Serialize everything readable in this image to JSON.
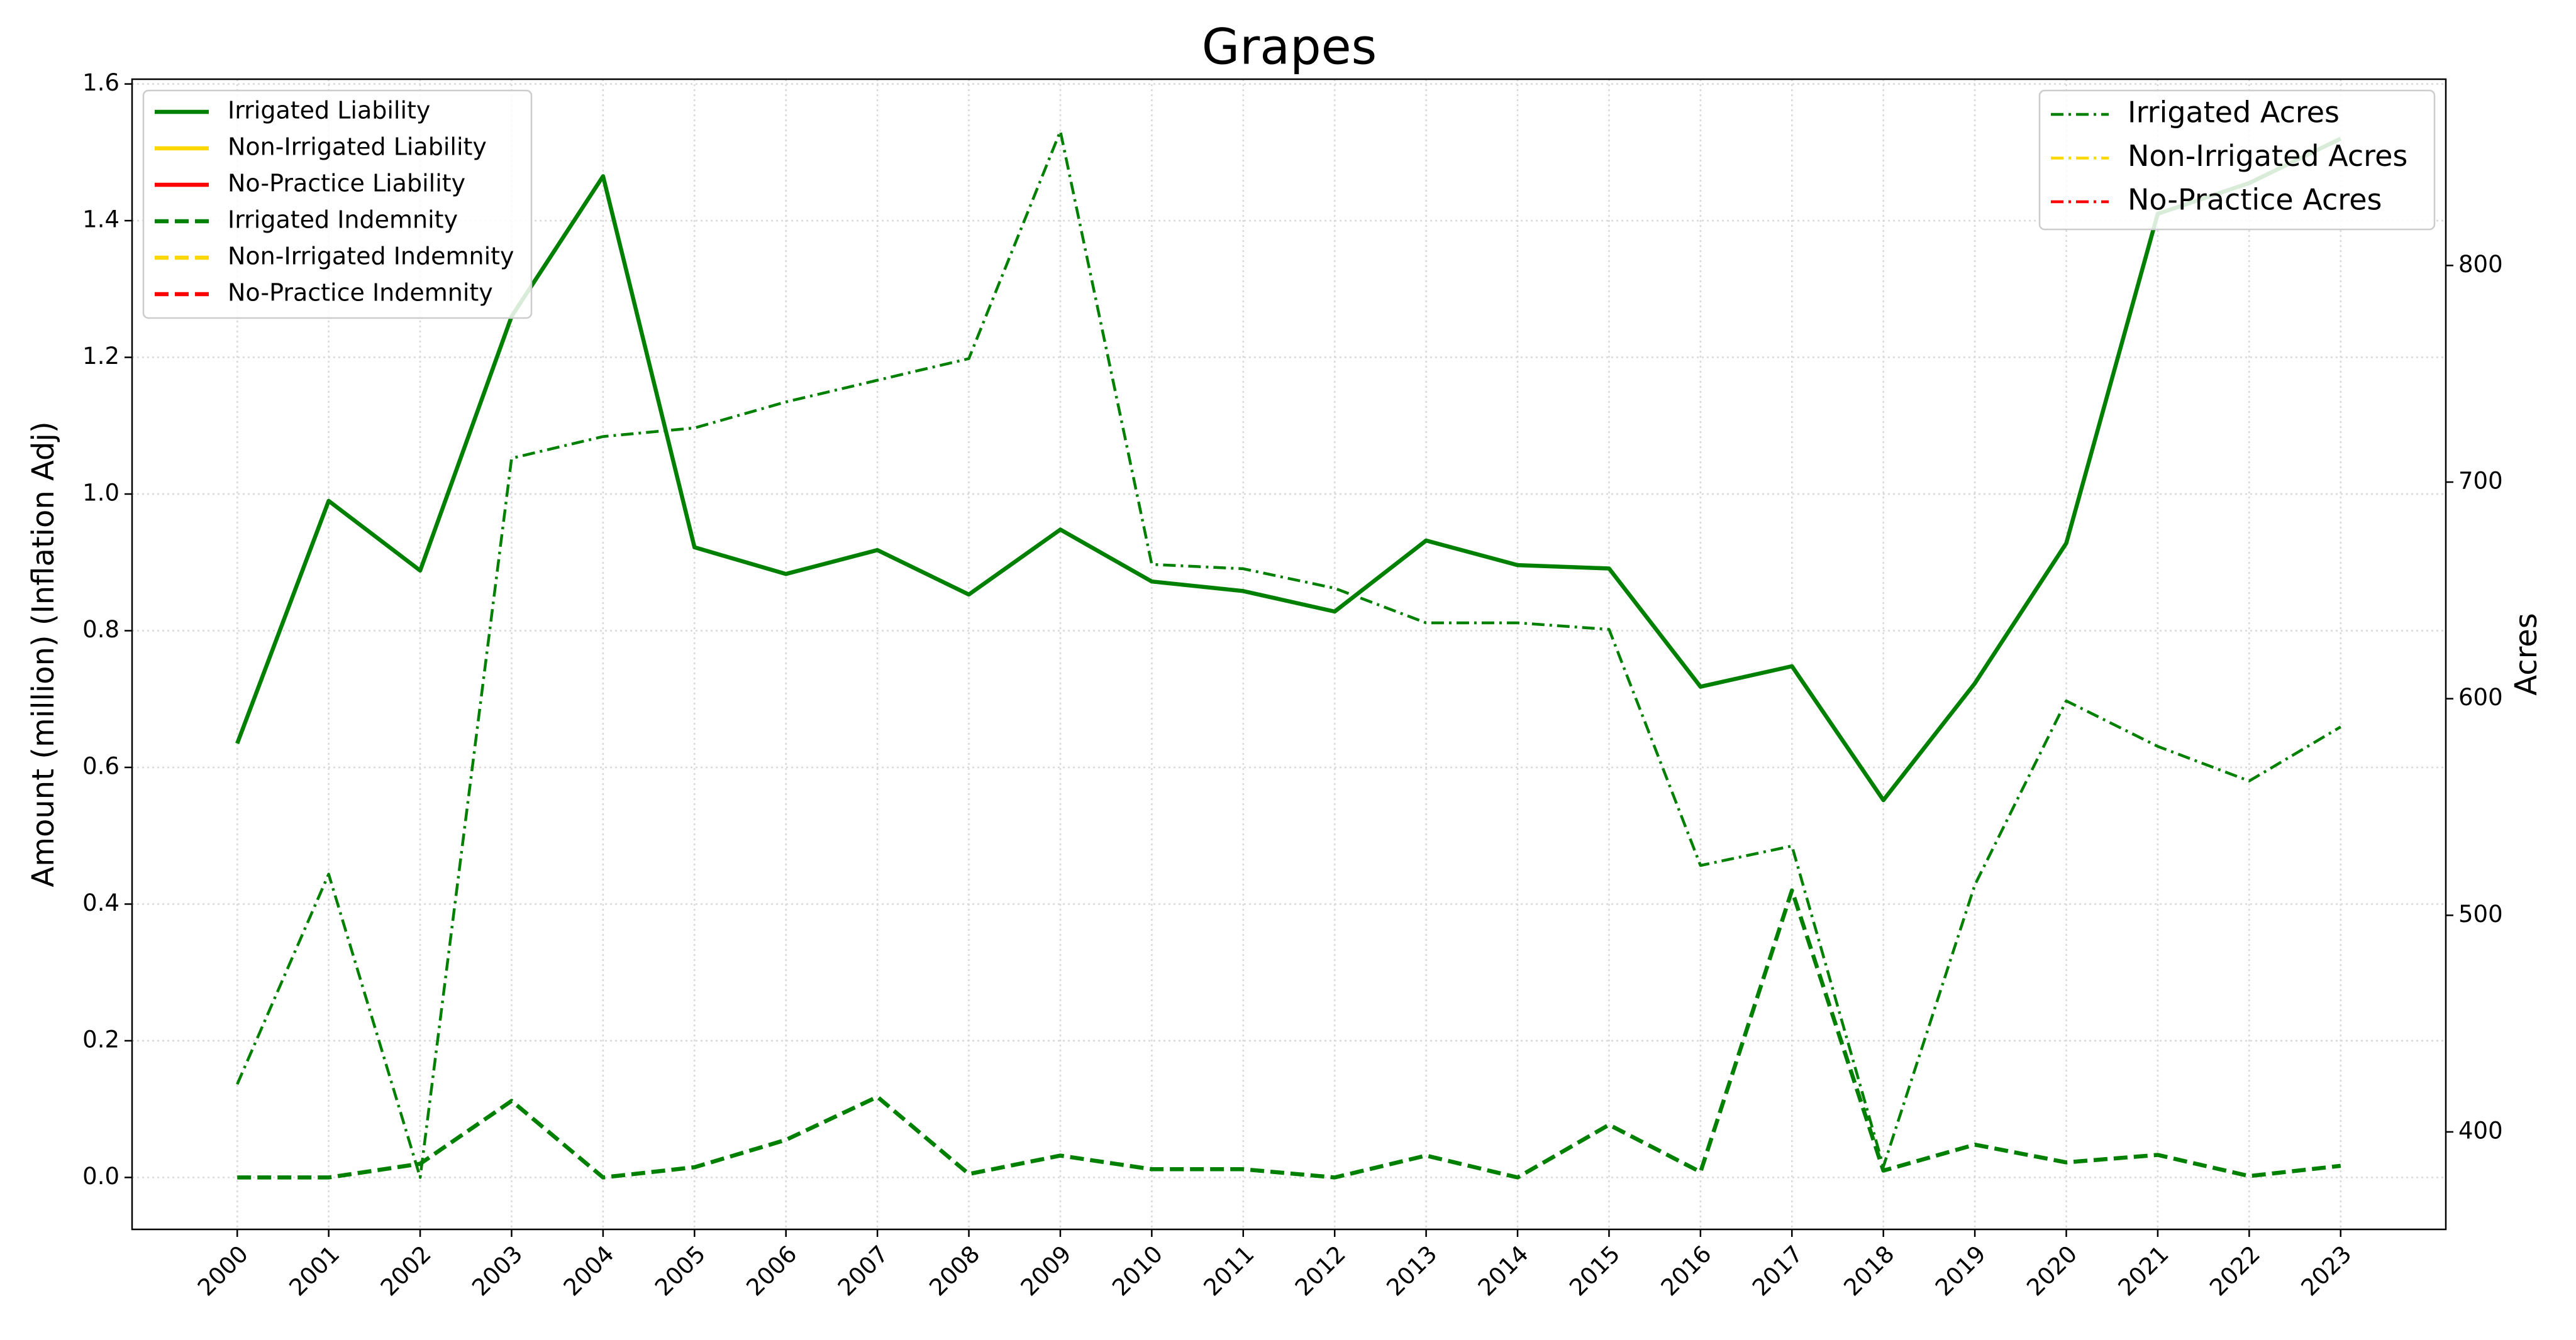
{
  "chart_data": {
    "type": "line",
    "title": "Grapes",
    "ylabel": "Amount (million) (Inflation Adj)",
    "y2label": "Acres",
    "x": [
      2000,
      2001,
      2002,
      2003,
      2004,
      2005,
      2006,
      2007,
      2008,
      2009,
      2010,
      2011,
      2012,
      2013,
      2014,
      2015,
      2016,
      2017,
      2018,
      2019,
      2020,
      2021,
      2022,
      2023
    ],
    "xlim": [
      1998.85,
      2024.15
    ],
    "xticks": [
      2000,
      2001,
      2002,
      2003,
      2004,
      2005,
      2006,
      2007,
      2008,
      2009,
      2010,
      2011,
      2012,
      2013,
      2014,
      2015,
      2016,
      2017,
      2018,
      2019,
      2020,
      2021,
      2022,
      2023
    ],
    "ylim": [
      -0.076,
      1.607
    ],
    "yticks": [
      {
        "value": 0,
        "label": "0.0"
      },
      0.2,
      0.4,
      0.6,
      0.8,
      {
        "value": 1,
        "label": "1.0"
      },
      1.2,
      1.4,
      1.6
    ],
    "y2lim": [
      355,
      886
    ],
    "y2ticks": [
      400,
      500,
      600,
      700,
      800
    ],
    "grid": true,
    "legend": "upper left",
    "legend2": "upper right",
    "series": [
      {
        "name": "Irrigated Liability",
        "color": "#008000",
        "style": "solid",
        "values": [
          0.635,
          0.99,
          0.888,
          1.26,
          1.465,
          0.922,
          0.883,
          0.918,
          0.853,
          0.948,
          0.872,
          0.858,
          0.828,
          0.932,
          0.896,
          0.891,
          0.718,
          0.748,
          0.552,
          0.723,
          0.928,
          1.41,
          1.455,
          1.52
        ]
      },
      {
        "name": "Non-Irrigated Liability",
        "color": "#ffd700",
        "style": "solid",
        "values": [
          null,
          null,
          null,
          null,
          null,
          null,
          null,
          null,
          null,
          null,
          null,
          null,
          null,
          null,
          null,
          null,
          null,
          null,
          null,
          null,
          null,
          null,
          null,
          null
        ]
      },
      {
        "name": "No-Practice Liability",
        "color": "#ff0000",
        "style": "solid",
        "values": [
          null,
          null,
          null,
          null,
          null,
          null,
          null,
          null,
          null,
          null,
          null,
          null,
          null,
          null,
          null,
          null,
          null,
          null,
          null,
          null,
          null,
          null,
          null,
          null
        ]
      },
      {
        "name": "Irrigated Indemnity",
        "color": "#008000",
        "style": "dashed",
        "values": [
          0,
          0,
          0.02,
          0.112,
          0,
          0.015,
          0.055,
          0.118,
          0.005,
          0.032,
          0.012,
          0.012,
          0,
          0.032,
          0,
          0.077,
          0.008,
          0.42,
          0.01,
          0.048,
          0.022,
          0.033,
          0.002,
          0.017
        ]
      },
      {
        "name": "Non-Irrigated Indemnity",
        "color": "#ffd700",
        "style": "dashed",
        "values": [
          null,
          null,
          null,
          null,
          null,
          null,
          null,
          null,
          null,
          null,
          null,
          null,
          null,
          null,
          null,
          null,
          null,
          null,
          null,
          null,
          null,
          null,
          null,
          null
        ]
      },
      {
        "name": "No-Practice Indemnity",
        "color": "#ff0000",
        "style": "dashed",
        "values": [
          null,
          null,
          null,
          null,
          null,
          null,
          null,
          null,
          null,
          null,
          null,
          null,
          null,
          null,
          null,
          null,
          null,
          null,
          null,
          null,
          null,
          null,
          null,
          null
        ]
      },
      {
        "name": "Irrigated Acres",
        "color": "#008000",
        "style": "dashdot",
        "axis": "y2",
        "values": [
          422,
          519,
          379,
          711,
          721,
          725,
          737,
          747,
          757,
          862,
          662,
          660,
          651,
          635,
          635,
          632,
          523,
          532,
          384,
          514,
          599,
          578,
          562,
          587
        ]
      },
      {
        "name": "Non-Irrigated Acres",
        "color": "#ffd700",
        "style": "dashdot",
        "axis": "y2",
        "values": [
          null,
          null,
          null,
          null,
          null,
          null,
          null,
          null,
          null,
          null,
          null,
          null,
          null,
          null,
          null,
          null,
          null,
          null,
          null,
          null,
          null,
          null,
          null,
          null
        ]
      },
      {
        "name": "No-Practice Acres",
        "color": "#ff0000",
        "style": "dashdot",
        "axis": "y2",
        "values": [
          null,
          null,
          null,
          null,
          null,
          null,
          null,
          null,
          null,
          null,
          null,
          null,
          null,
          null,
          null,
          null,
          null,
          null,
          null,
          null,
          null,
          null,
          null,
          null
        ]
      }
    ]
  }
}
